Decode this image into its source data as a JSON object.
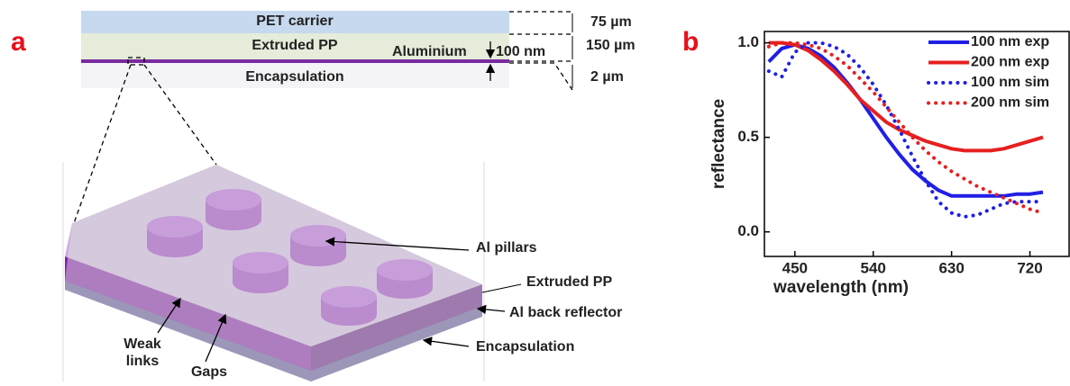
{
  "panel_a": {
    "label": "a",
    "layers": {
      "pet": "PET carrier",
      "pp": "Extruded PP",
      "al": "Aluminium",
      "al_thickness": "100 nm",
      "encap": "Encapsulation"
    },
    "thicknesses": [
      "75 µm",
      "150 µm",
      "2 µm"
    ],
    "callouts": {
      "pillars": "Al pillars",
      "pp": "Extruded PP",
      "reflector": "Al back reflector",
      "encap": "Encapsulation",
      "weak": [
        "Weak",
        "links"
      ],
      "gaps": "Gaps"
    }
  },
  "chart_data": {
    "type": "line",
    "label": "b",
    "xlabel": "wavelength (nm)",
    "ylabel": "reflectance",
    "xlim": [
      415,
      765
    ],
    "ylim": [
      -0.13,
      1.06
    ],
    "xticks": [
      450,
      540,
      630,
      720
    ],
    "yticks": [
      {
        "value": 0,
        "label": "0.0"
      },
      0.5,
      {
        "value": 1,
        "label": "1.0"
      }
    ],
    "x": [
      420,
      435,
      450,
      465,
      480,
      495,
      510,
      525,
      540,
      555,
      570,
      585,
      600,
      615,
      630,
      645,
      660,
      675,
      690,
      705,
      720,
      735
    ],
    "series": [
      {
        "name": "100 nm exp",
        "color": "#1f1fe6",
        "style": "solid",
        "values": [
          0.9,
          0.97,
          0.99,
          0.97,
          0.93,
          0.87,
          0.79,
          0.7,
          0.6,
          0.5,
          0.41,
          0.33,
          0.27,
          0.22,
          0.19,
          0.19,
          0.19,
          0.19,
          0.19,
          0.2,
          0.2,
          0.21
        ]
      },
      {
        "name": "200 nm exp",
        "color": "#e61f1f",
        "style": "solid",
        "values": [
          1.0,
          1.0,
          0.99,
          0.96,
          0.91,
          0.85,
          0.78,
          0.7,
          0.64,
          0.58,
          0.54,
          0.51,
          0.48,
          0.46,
          0.44,
          0.43,
          0.43,
          0.43,
          0.44,
          0.46,
          0.48,
          0.5
        ]
      },
      {
        "name": "100 nm sim",
        "color": "#1f1fe6",
        "style": "dotted",
        "values": [
          0.85,
          0.82,
          0.95,
          1.0,
          1.0,
          0.98,
          0.94,
          0.87,
          0.78,
          0.67,
          0.54,
          0.4,
          0.27,
          0.16,
          0.1,
          0.08,
          0.09,
          0.12,
          0.15,
          0.16,
          0.16,
          0.16
        ]
      },
      {
        "name": "200 nm sim",
        "color": "#e61f1f",
        "style": "dotted",
        "values": [
          0.98,
          1.0,
          1.0,
          0.99,
          0.97,
          0.93,
          0.88,
          0.81,
          0.74,
          0.66,
          0.58,
          0.5,
          0.43,
          0.37,
          0.32,
          0.28,
          0.24,
          0.21,
          0.18,
          0.15,
          0.12,
          0.1
        ]
      }
    ]
  }
}
